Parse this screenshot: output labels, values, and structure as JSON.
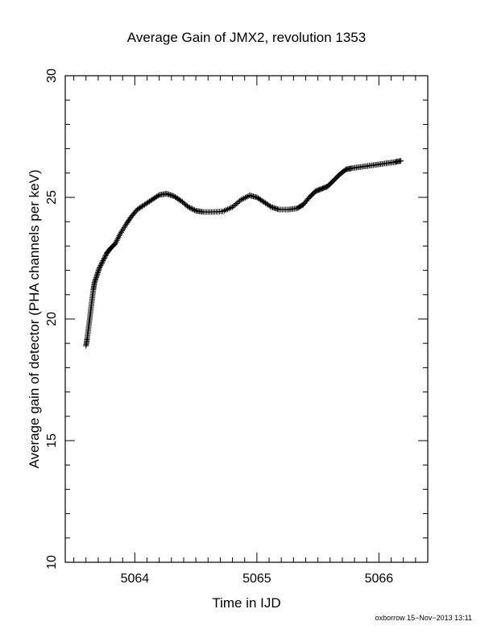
{
  "chart_data": {
    "type": "scatter",
    "title": "Average Gain of JMX2, revolution 1353",
    "xlabel": "Time in IJD",
    "ylabel": "Average gain of detector (PHA channels per keV)",
    "xlim": [
      5063.43,
      5066.4
    ],
    "ylim": [
      10,
      30
    ],
    "xticks": [
      5064,
      5065,
      5066
    ],
    "yticks": [
      10,
      15,
      20,
      25,
      30
    ],
    "marker": "+",
    "marker_color": "#000000",
    "grid": false,
    "points": [
      [
        5063.6,
        18.9
      ],
      [
        5063.61,
        19.2
      ],
      [
        5063.62,
        19.6
      ],
      [
        5063.63,
        20.0
      ],
      [
        5063.64,
        20.4
      ],
      [
        5063.65,
        20.8
      ],
      [
        5063.66,
        21.2
      ],
      [
        5063.67,
        21.5
      ],
      [
        5063.69,
        21.8
      ],
      [
        5063.71,
        22.1
      ],
      [
        5063.74,
        22.4
      ],
      [
        5063.77,
        22.7
      ],
      [
        5063.8,
        22.9
      ],
      [
        5063.84,
        23.1
      ],
      [
        5063.88,
        23.5
      ],
      [
        5063.93,
        23.9
      ],
      [
        5063.97,
        24.2
      ],
      [
        5064.02,
        24.5
      ],
      [
        5064.08,
        24.7
      ],
      [
        5064.14,
        24.9
      ],
      [
        5064.2,
        25.1
      ],
      [
        5064.26,
        25.15
      ],
      [
        5064.32,
        25.05
      ],
      [
        5064.38,
        24.85
      ],
      [
        5064.44,
        24.6
      ],
      [
        5064.5,
        24.45
      ],
      [
        5064.56,
        24.4
      ],
      [
        5064.64,
        24.4
      ],
      [
        5064.72,
        24.42
      ],
      [
        5064.8,
        24.6
      ],
      [
        5064.87,
        24.9
      ],
      [
        5064.94,
        25.08
      ],
      [
        5065.0,
        25.0
      ],
      [
        5065.06,
        24.8
      ],
      [
        5065.12,
        24.6
      ],
      [
        5065.18,
        24.5
      ],
      [
        5065.26,
        24.5
      ],
      [
        5065.33,
        24.55
      ],
      [
        5065.38,
        24.7
      ],
      [
        5065.43,
        25.0
      ],
      [
        5065.48,
        25.25
      ],
      [
        5065.53,
        25.35
      ],
      [
        5065.58,
        25.45
      ],
      [
        5065.63,
        25.7
      ],
      [
        5065.68,
        25.95
      ],
      [
        5065.73,
        26.15
      ],
      [
        5065.78,
        26.2
      ],
      [
        5065.85,
        26.25
      ],
      [
        5065.92,
        26.3
      ],
      [
        5065.99,
        26.35
      ],
      [
        5066.06,
        26.4
      ],
      [
        5066.13,
        26.45
      ],
      [
        5066.18,
        26.5
      ]
    ]
  },
  "footer": {
    "stamp": "oxborrow 15−Nov−2013 13:11"
  }
}
